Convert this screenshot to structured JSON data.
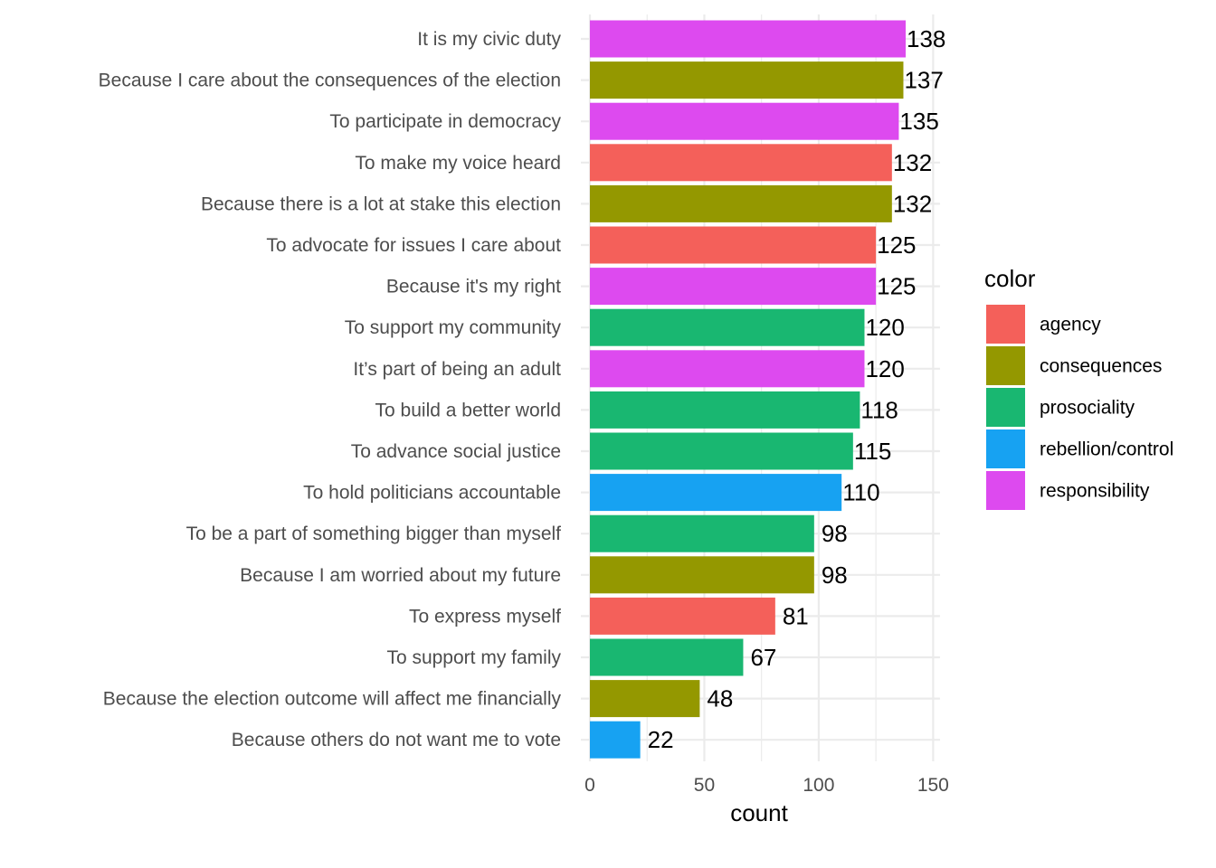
{
  "chart_data": {
    "type": "bar",
    "orientation": "horizontal",
    "categories": [
      "It is my civic duty",
      "Because I care about the consequences of the election",
      "To participate in democracy",
      "To make my voice heard",
      "Because there is a lot at stake this election",
      "To advocate for issues I care about",
      "Because it's my right",
      "To support my community",
      "It’s part of being an adult",
      "To build a better world",
      "To advance social justice",
      "To hold politicians accountable",
      "To be a part of something bigger than myself",
      "Because I am worried about my future",
      "To express myself",
      "To support my family",
      "Because the election outcome will affect me financially",
      "Because others do not want me to vote"
    ],
    "values": [
      138,
      137,
      135,
      132,
      132,
      125,
      125,
      120,
      120,
      118,
      115,
      110,
      98,
      98,
      81,
      67,
      48,
      22
    ],
    "data_labels": [
      "138",
      "137",
      "135",
      "132",
      "132",
      "125",
      "125",
      "120",
      "120",
      "118",
      "115",
      "110",
      "98",
      "98",
      "81",
      "67",
      "48",
      "22"
    ],
    "groups": [
      "responsibility",
      "consequences",
      "responsibility",
      "agency",
      "consequences",
      "agency",
      "responsibility",
      "prosociality",
      "responsibility",
      "prosociality",
      "prosociality",
      "rebellion/control",
      "prosociality",
      "consequences",
      "agency",
      "prosociality",
      "consequences",
      "rebellion/control"
    ],
    "xlabel": "count",
    "ylabel": "",
    "xlim": [
      0,
      153
    ],
    "xticks": [
      0,
      50,
      100,
      150
    ],
    "xtick_labels": [
      "0",
      "50",
      "100",
      "150"
    ],
    "grid": true,
    "legend": {
      "title": "color",
      "position": "right",
      "entries": [
        {
          "label": "agency",
          "color": "#F8766D"
        },
        {
          "label": "consequences",
          "color": "#A3A500"
        },
        {
          "label": "prosociality",
          "color": "#00BF7D"
        },
        {
          "label": "rebellion/control",
          "color": "#00B0F6"
        },
        {
          "label": "responsibility",
          "color": "#E76BF3"
        }
      ]
    }
  },
  "colors": {
    "agency": "#F4605A",
    "consequences": "#949800",
    "prosociality": "#19B771",
    "rebellion/control": "#17A2F2",
    "responsibility": "#DD4AEF",
    "grid": "#EBEBEB"
  }
}
